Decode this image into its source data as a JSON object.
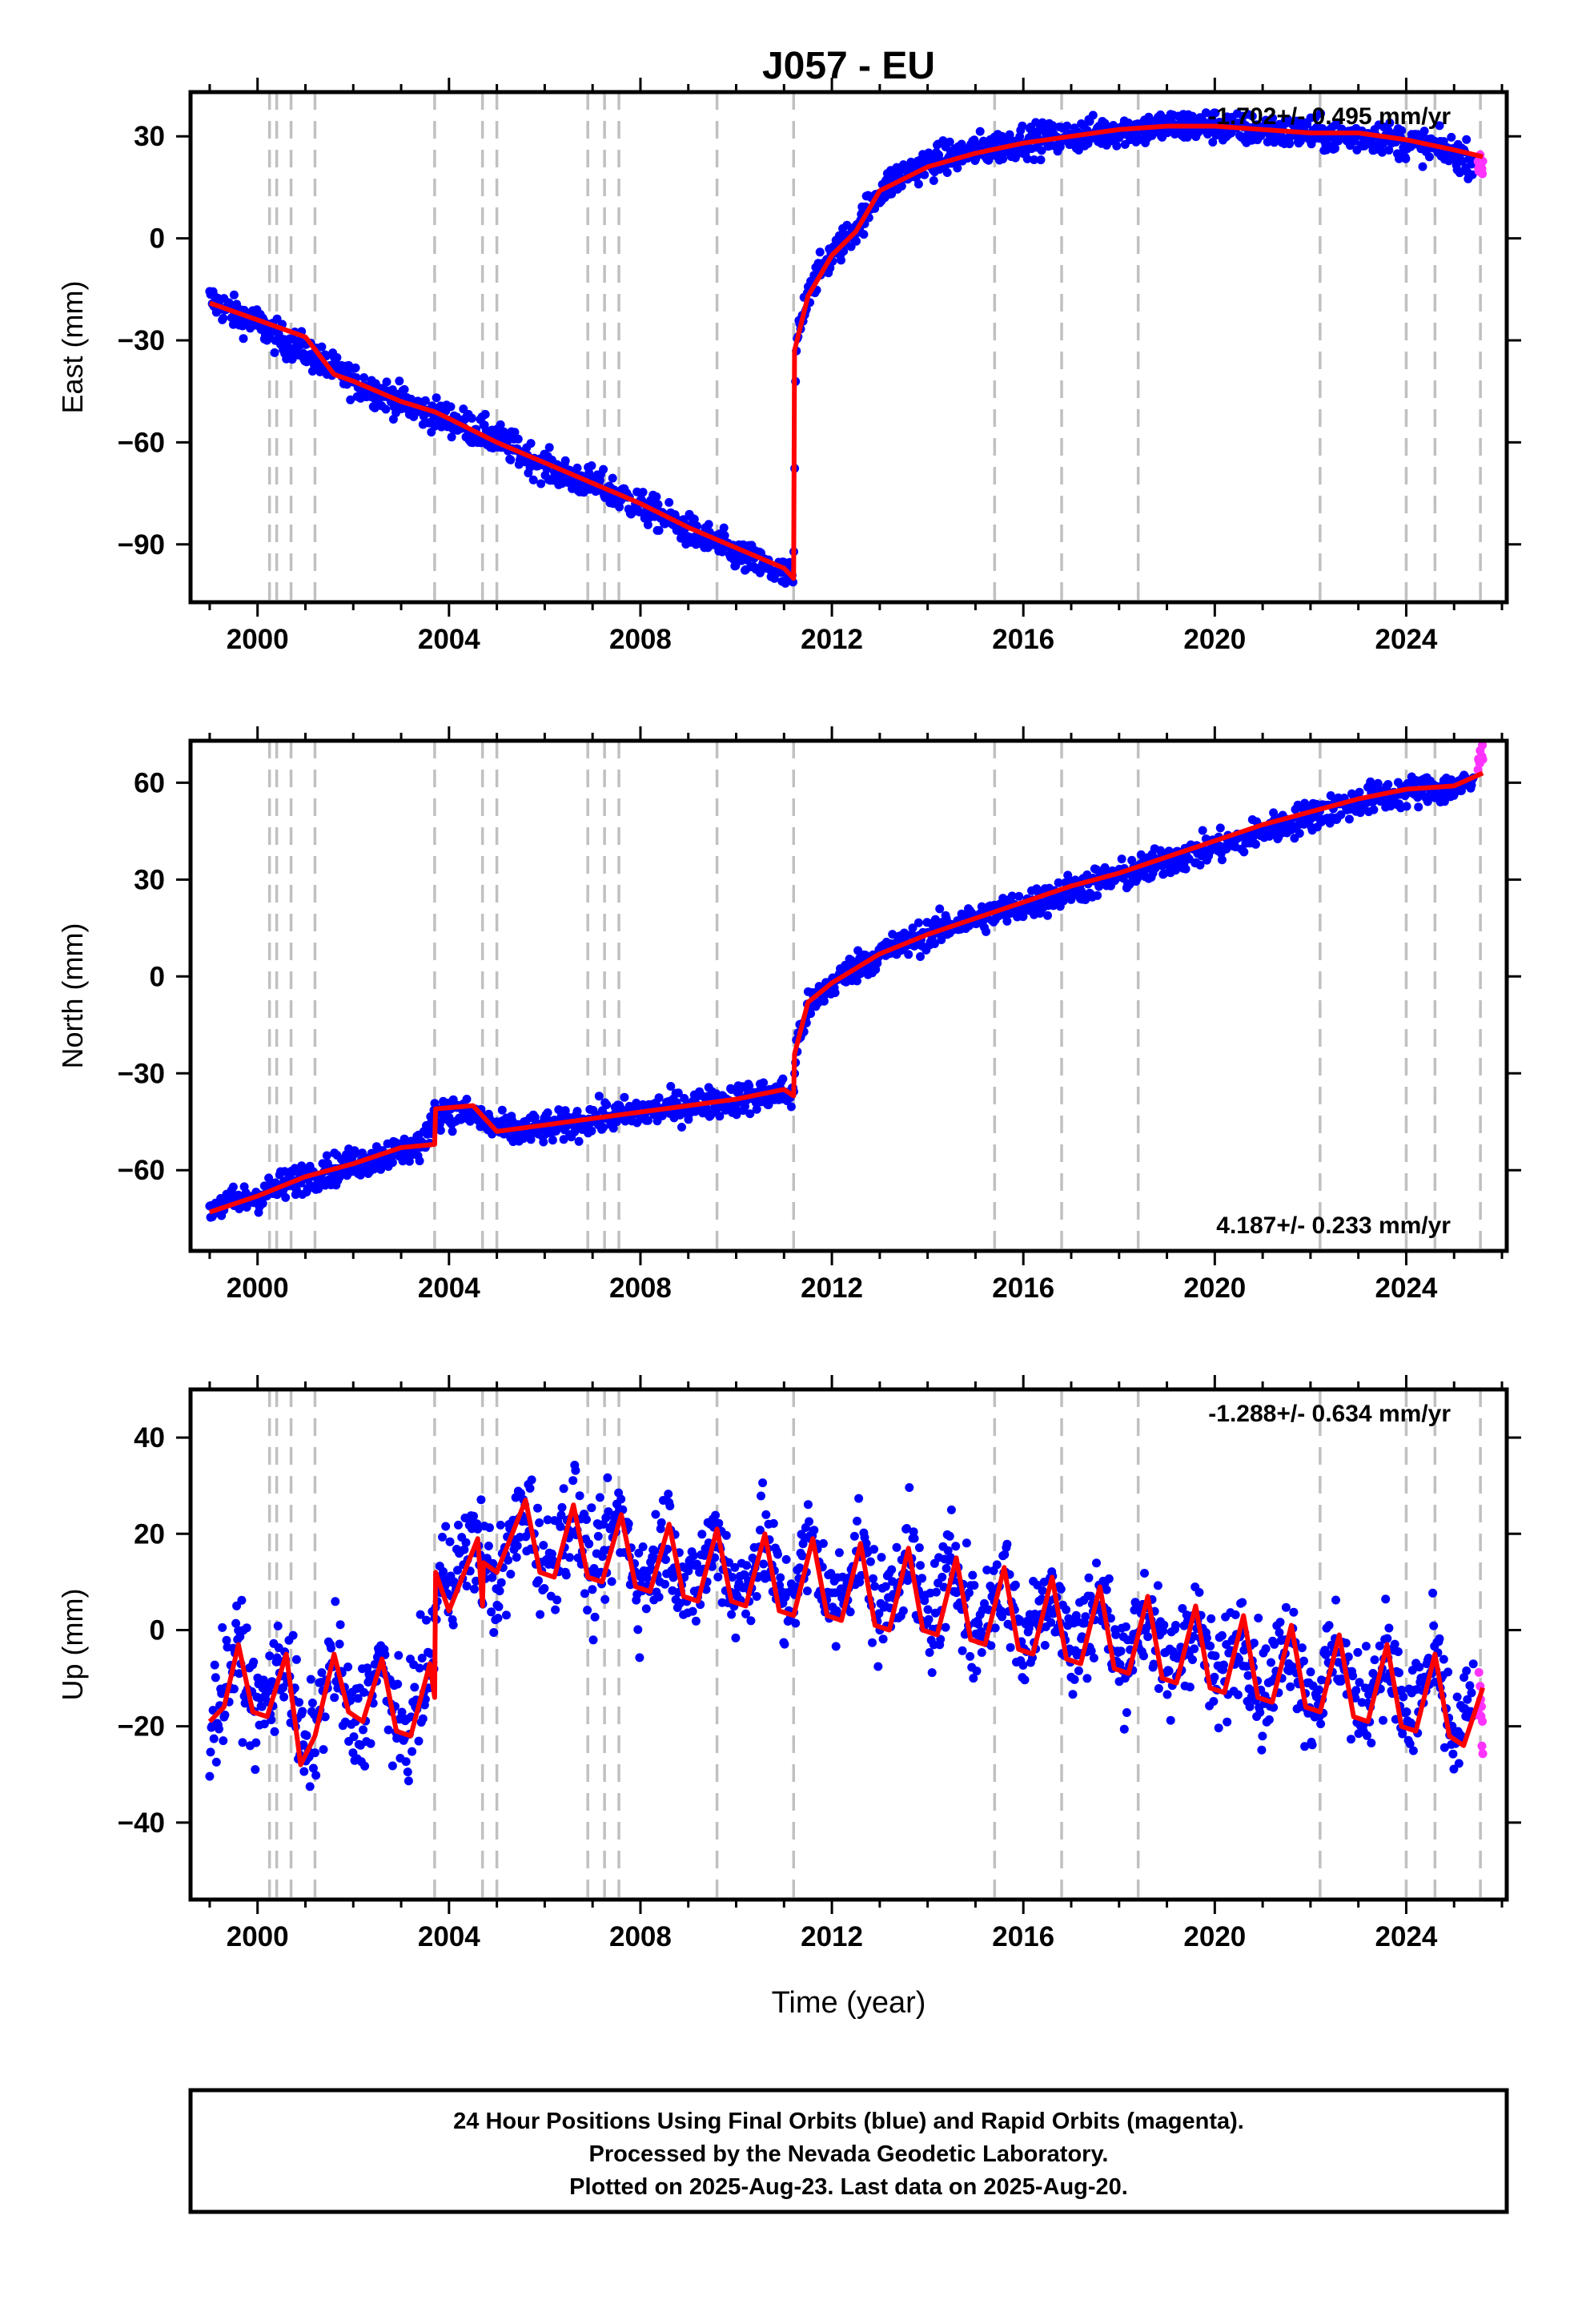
{
  "title": "J057 - EU",
  "xlabel": "Time (year)",
  "caption": [
    "24 Hour Positions Using Final Orbits (blue) and Rapid Orbits (magenta).",
    "Processed by the Nevada Geodetic Laboratory.",
    "Plotted on 2025-Aug-23. Last data on 2025-Aug-20."
  ],
  "colors": {
    "final": "#0000ff",
    "rapid": "#ff33ff",
    "model": "#ff0000",
    "event_lines": "#c0c0c0"
  },
  "chart_data": [
    {
      "type": "scatter",
      "ylabel": "East (mm)",
      "rate_text": "-1.702+/- 0.495 mm/yr",
      "xlim": [
        1998.6,
        2026.1
      ],
      "ylim": [
        -107,
        43
      ],
      "xticks": [
        2000,
        2004,
        2008,
        2012,
        2016,
        2020,
        2024
      ],
      "yticks": [
        30,
        0,
        -30,
        -60,
        -90
      ],
      "event_lines": [
        2000.25,
        2000.4,
        2000.7,
        2001.2,
        2003.7,
        2004.7,
        2005.0,
        2006.9,
        2007.25,
        2007.55,
        2009.6,
        2011.2,
        2015.4,
        2016.8,
        2018.4,
        2022.2,
        2024.0,
        2024.6,
        2025.55
      ],
      "series": [
        {
          "name": "Final Orbits",
          "x": [
            1999.0,
            1999.5,
            2000.0,
            2000.5,
            2001.0,
            2001.5,
            2002.0,
            2002.5,
            2003.0,
            2003.5,
            2004.0,
            2004.5,
            2005.0,
            2005.5,
            2006.0,
            2006.5,
            2007.0,
            2007.5,
            2008.0,
            2008.5,
            2009.0,
            2009.5,
            2010.0,
            2010.5,
            2011.0,
            2011.2,
            2011.25,
            2011.5,
            2012.0,
            2012.5,
            2013.0,
            2013.5,
            2014.0,
            2014.5,
            2015.0,
            2015.5,
            2016.0,
            2016.5,
            2017.0,
            2017.5,
            2018.0,
            2018.5,
            2019.0,
            2019.5,
            2020.0,
            2020.5,
            2021.0,
            2021.5,
            2022.0,
            2022.5,
            2023.0,
            2023.5,
            2024.0,
            2024.5,
            2025.0,
            2025.4
          ],
          "y": [
            -18,
            -22,
            -25,
            -30,
            -33,
            -38,
            -42,
            -45,
            -48,
            -51,
            -53,
            -56,
            -59,
            -63,
            -67,
            -70,
            -72,
            -75,
            -79,
            -82,
            -86,
            -89,
            -93,
            -96,
            -99,
            -100,
            -32,
            -15,
            -5,
            3,
            14,
            19,
            22,
            24,
            26,
            27,
            29,
            29,
            30,
            31,
            32,
            32,
            33,
            33,
            33,
            32,
            32,
            31,
            31,
            30,
            30,
            30,
            28,
            27,
            25,
            23
          ]
        },
        {
          "name": "Rapid Orbits",
          "x": [
            2025.5,
            2025.55,
            2025.6
          ],
          "y": [
            22,
            21,
            21
          ]
        },
        {
          "name": "Model",
          "x": [
            1999.0,
            2000.0,
            2001.0,
            2001.6,
            2002.0,
            2003.0,
            2003.7,
            2004.0,
            2005.0,
            2006.0,
            2007.0,
            2008.0,
            2009.0,
            2010.0,
            2011.0,
            2011.2,
            2011.22,
            2011.5,
            2012.0,
            2012.5,
            2013.0,
            2014.0,
            2015.0,
            2016.0,
            2017.0,
            2018.0,
            2019.0,
            2020.0,
            2021.0,
            2022.0,
            2023.0,
            2024.0,
            2025.0,
            2025.6
          ],
          "y": [
            -19,
            -24,
            -29,
            -40,
            -42,
            -48,
            -51,
            -53,
            -60,
            -66,
            -72,
            -78,
            -85,
            -91,
            -97,
            -100,
            -33,
            -17,
            -5,
            2,
            14,
            21,
            25,
            28,
            30,
            32,
            33,
            33,
            32,
            31,
            31,
            29,
            26,
            24
          ]
        }
      ]
    },
    {
      "type": "scatter",
      "ylabel": "North (mm)",
      "rate_text": "4.187+/- 0.233 mm/yr",
      "xlim": [
        1998.6,
        2026.1
      ],
      "ylim": [
        -85,
        73
      ],
      "xticks": [
        2000,
        2004,
        2008,
        2012,
        2016,
        2020,
        2024
      ],
      "yticks": [
        60,
        30,
        0,
        -30,
        -60
      ],
      "event_lines": [
        2000.25,
        2000.4,
        2000.7,
        2001.2,
        2003.7,
        2004.7,
        2005.0,
        2006.9,
        2007.25,
        2007.55,
        2009.6,
        2011.2,
        2015.4,
        2016.8,
        2018.4,
        2022.2,
        2024.0,
        2024.6,
        2025.55
      ],
      "series": [
        {
          "name": "Final Orbits",
          "x": [
            1999.0,
            1999.5,
            2000.0,
            2000.5,
            2001.0,
            2001.5,
            2002.0,
            2002.5,
            2003.0,
            2003.5,
            2003.7,
            2004.0,
            2004.5,
            2005.0,
            2005.5,
            2006.0,
            2006.5,
            2007.0,
            2007.5,
            2008.0,
            2008.5,
            2009.0,
            2009.5,
            2010.0,
            2010.5,
            2011.0,
            2011.2,
            2011.25,
            2011.5,
            2012.0,
            2012.5,
            2013.0,
            2013.5,
            2014.0,
            2014.5,
            2015.0,
            2015.5,
            2016.0,
            2016.5,
            2017.0,
            2017.5,
            2018.0,
            2018.5,
            2019.0,
            2019.5,
            2020.0,
            2020.5,
            2021.0,
            2021.5,
            2022.0,
            2022.5,
            2023.0,
            2023.5,
            2024.0,
            2024.5,
            2025.0,
            2025.4
          ],
          "y": [
            -72,
            -70,
            -68,
            -65,
            -62,
            -60,
            -58,
            -56,
            -54,
            -52,
            -42,
            -42,
            -43,
            -47,
            -48,
            -47,
            -46,
            -44,
            -43,
            -42,
            -41,
            -40,
            -39,
            -38,
            -37,
            -36,
            -37,
            -22,
            -10,
            -2,
            3,
            7,
            10,
            13,
            16,
            18,
            20,
            22,
            24,
            27,
            29,
            31,
            33,
            36,
            38,
            40,
            42,
            45,
            47,
            50,
            52,
            54,
            56,
            57,
            58,
            58,
            60
          ]
        },
        {
          "name": "Rapid Orbits",
          "x": [
            2025.5,
            2025.55,
            2025.6
          ],
          "y": [
            65,
            68,
            70
          ]
        },
        {
          "name": "Model",
          "x": [
            1999.0,
            2000.0,
            2001.0,
            2002.0,
            2003.0,
            2003.7,
            2003.72,
            2004.5,
            2005.0,
            2006.0,
            2007.0,
            2008.0,
            2009.0,
            2010.0,
            2011.0,
            2011.2,
            2011.22,
            2011.5,
            2012.0,
            2013.0,
            2014.0,
            2015.0,
            2016.0,
            2017.0,
            2018.0,
            2019.0,
            2020.0,
            2021.0,
            2022.0,
            2023.0,
            2024.0,
            2025.0,
            2025.6
          ],
          "y": [
            -73,
            -68,
            -62,
            -58,
            -53,
            -52,
            -41,
            -40,
            -48,
            -46,
            -44,
            -42,
            -40,
            -38,
            -35,
            -37,
            -24,
            -8,
            -2,
            7,
            13,
            18,
            23,
            28,
            32,
            37,
            42,
            47,
            51,
            55,
            58,
            59,
            63
          ]
        }
      ]
    },
    {
      "type": "scatter",
      "ylabel": "Up (mm)",
      "rate_text": "-1.288+/- 0.634 mm/yr",
      "xlim": [
        1998.6,
        2026.1
      ],
      "ylim": [
        -56,
        50
      ],
      "xticks": [
        2000,
        2004,
        2008,
        2012,
        2016,
        2020,
        2024
      ],
      "yticks": [
        40,
        20,
        0,
        -20,
        -40
      ],
      "event_lines": [
        2000.25,
        2000.4,
        2000.7,
        2001.2,
        2003.7,
        2004.7,
        2005.0,
        2006.9,
        2007.25,
        2007.55,
        2009.6,
        2011.2,
        2015.4,
        2016.8,
        2018.4,
        2022.2,
        2024.0,
        2024.6,
        2025.55
      ],
      "series": [
        {
          "name": "Final Orbits",
          "x": [
            1999.0,
            1999.6,
            2000.0,
            2000.6,
            2001.0,
            2001.6,
            2002.0,
            2002.6,
            2003.0,
            2003.6,
            2003.8,
            2004.6,
            2005.0,
            2005.6,
            2006.0,
            2006.6,
            2007.0,
            2007.6,
            2008.0,
            2008.6,
            2009.0,
            2009.6,
            2010.0,
            2010.6,
            2011.0,
            2011.6,
            2012.0,
            2012.6,
            2013.0,
            2013.6,
            2014.0,
            2014.6,
            2015.0,
            2015.6,
            2016.0,
            2016.6,
            2017.0,
            2017.6,
            2018.0,
            2018.6,
            2019.0,
            2019.6,
            2020.0,
            2020.6,
            2021.0,
            2021.6,
            2022.0,
            2022.6,
            2023.0,
            2023.6,
            2024.0,
            2024.6,
            2025.0,
            2025.4
          ],
          "y": [
            -20,
            -4,
            -18,
            -5,
            -28,
            -5,
            -22,
            -7,
            -23,
            -8,
            10,
            18,
            8,
            26,
            12,
            25,
            10,
            24,
            8,
            21,
            6,
            20,
            6,
            19,
            4,
            19,
            4,
            18,
            2,
            17,
            0,
            15,
            -2,
            12,
            -4,
            10,
            -6,
            8,
            -8,
            5,
            -10,
            3,
            -12,
            1,
            -14,
            -1,
            -16,
            -3,
            -18,
            -4,
            -20,
            -6,
            -24,
            -14
          ]
        },
        {
          "name": "Rapid Orbits",
          "x": [
            2025.5,
            2025.55,
            2025.6
          ],
          "y": [
            -12,
            -18,
            -22
          ]
        },
        {
          "name": "Model",
          "x": [
            1999.0,
            1999.3,
            1999.6,
            1999.9,
            2000.2,
            2000.6,
            2000.9,
            2001.2,
            2001.6,
            2001.9,
            2002.2,
            2002.6,
            2002.9,
            2003.2,
            2003.6,
            2003.7,
            2003.72,
            2004.0,
            2004.6,
            2004.7,
            2004.72,
            2005.0,
            2005.6,
            2005.9,
            2006.2,
            2006.6,
            2006.9,
            2007.2,
            2007.6,
            2007.9,
            2008.2,
            2008.6,
            2008.9,
            2009.2,
            2009.6,
            2009.9,
            2010.2,
            2010.6,
            2010.9,
            2011.2,
            2011.6,
            2011.9,
            2012.2,
            2012.6,
            2012.9,
            2013.2,
            2013.6,
            2013.9,
            2014.2,
            2014.6,
            2014.9,
            2015.2,
            2015.6,
            2015.9,
            2016.2,
            2016.6,
            2016.9,
            2017.2,
            2017.6,
            2017.9,
            2018.2,
            2018.6,
            2018.9,
            2019.2,
            2019.6,
            2019.9,
            2020.2,
            2020.6,
            2020.9,
            2021.2,
            2021.6,
            2021.9,
            2022.2,
            2022.6,
            2022.9,
            2023.2,
            2023.6,
            2023.9,
            2024.2,
            2024.6,
            2024.9,
            2025.2,
            2025.6
          ],
          "y": [
            -19,
            -16,
            -3,
            -17,
            -18,
            -5,
            -28,
            -22,
            -5,
            -17,
            -19,
            -6,
            -21,
            -22,
            -7,
            -14,
            12,
            4,
            19,
            5,
            14,
            12,
            27,
            12,
            11,
            26,
            11,
            10,
            24,
            9,
            8,
            22,
            7,
            6,
            21,
            6,
            5,
            20,
            4,
            3,
            19,
            3,
            2,
            18,
            1,
            0,
            17,
            0,
            -1,
            15,
            -2,
            -3,
            13,
            -4,
            -5,
            11,
            -6,
            -7,
            9,
            -8,
            -9,
            7,
            -10,
            -11,
            5,
            -12,
            -13,
            3,
            -14,
            -15,
            1,
            -16,
            -17,
            -1,
            -18,
            -19,
            -3,
            -20,
            -21,
            -5,
            -22,
            -24,
            -12
          ]
        }
      ]
    }
  ]
}
